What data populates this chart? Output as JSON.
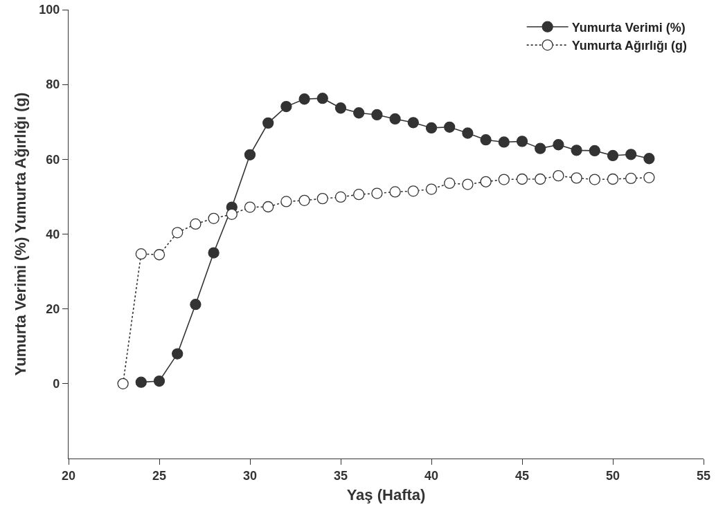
{
  "chart_data": {
    "type": "line",
    "xlabel": "Yaş (Hafta)",
    "ylabel": "Yumurta Verimi (%) Yumurta Ağırlığı (g)",
    "xlim": [
      20,
      55
    ],
    "xticks": [
      20,
      25,
      30,
      35,
      40,
      45,
      50,
      55
    ],
    "ylim": [
      -20,
      100
    ],
    "yticks": [
      0,
      20,
      40,
      60,
      80,
      100
    ],
    "grid": false,
    "legend": "top right",
    "series": [
      {
        "name": "Yumurta Verimi (%)",
        "color": "#333333",
        "line_style": "solid",
        "marker": "circle",
        "x": [
          24,
          25,
          26,
          27,
          28,
          29,
          30,
          31,
          32,
          33,
          34,
          35,
          36,
          37,
          38,
          39,
          40,
          41,
          42,
          43,
          44,
          45,
          46,
          47,
          48,
          49,
          50,
          51,
          52
        ],
        "values": [
          0.4,
          0.7,
          8,
          21.2,
          35,
          47.2,
          61.2,
          69.7,
          74.1,
          76.1,
          76.3,
          73.7,
          72.4,
          71.9,
          70.8,
          69.8,
          68.4,
          68.6,
          67.0,
          65.2,
          64.6,
          64.8,
          62.9,
          63.9,
          62.4,
          62.3,
          61.0,
          61.3,
          60.2
        ]
      },
      {
        "name": "Yumurta Ağırlığı (g)",
        "color": "#333333",
        "line_style": "dotted",
        "marker": "circle-open",
        "x": [
          23,
          24,
          25,
          26,
          27,
          28,
          29,
          30,
          31,
          32,
          33,
          34,
          35,
          36,
          37,
          38,
          39,
          40,
          41,
          42,
          43,
          44,
          45,
          46,
          47,
          48,
          49,
          50,
          51,
          52
        ],
        "values": [
          0,
          34.7,
          34.5,
          40.4,
          42.7,
          44.2,
          45.3,
          47.2,
          47.3,
          48.7,
          49.0,
          49.5,
          49.9,
          50.6,
          50.9,
          51.3,
          51.5,
          52.0,
          53.6,
          53.3,
          54.0,
          54.6,
          54.7,
          54.7,
          55.6,
          55.0,
          54.6,
          54.7,
          54.9,
          55.1
        ]
      }
    ]
  }
}
